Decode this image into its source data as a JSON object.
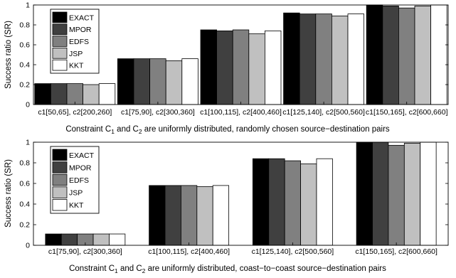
{
  "chart_data": [
    {
      "type": "bar",
      "title": "",
      "ylabel": "Success ratio (SR)",
      "xlabel_parts": [
        "Constraint C",
        "1",
        " and C",
        "2",
        " are uniformly distributed, randomly chosen source−destination pairs"
      ],
      "ylim": [
        0,
        1
      ],
      "yticks": [
        "0",
        "0.2",
        "0.4",
        "0.6",
        "0.8",
        "1"
      ],
      "grid": false,
      "legend_position": "top-left",
      "categories": [
        "c1[50,65], c2[200,260]",
        "c1[75,90], c2[300,360]",
        "c1[100,115], c2[400,460]",
        "c1[125,140], c2[500,560]",
        "c1[150,165], c2[600,660]"
      ],
      "series": [
        {
          "name": "EXACT",
          "color": "#000000",
          "values": [
            0.21,
            0.46,
            0.75,
            0.92,
            1.0
          ]
        },
        {
          "name": "MPOR",
          "color": "#404040",
          "values": [
            0.21,
            0.46,
            0.74,
            0.91,
            0.99
          ]
        },
        {
          "name": "EDFS",
          "color": "#808080",
          "values": [
            0.21,
            0.46,
            0.75,
            0.91,
            0.97
          ]
        },
        {
          "name": "JSP",
          "color": "#c0c0c0",
          "values": [
            0.2,
            0.44,
            0.71,
            0.89,
            0.99
          ]
        },
        {
          "name": "KKT",
          "color": "#ffffff",
          "values": [
            0.21,
            0.46,
            0.74,
            0.91,
            1.0
          ]
        }
      ]
    },
    {
      "type": "bar",
      "title": "",
      "ylabel": "Success ratio (SR)",
      "xlabel_parts": [
        "Constraint C",
        "1",
        " and C",
        "2",
        " are uniformly distributed, coast−to−coast source−destination pairs"
      ],
      "ylim": [
        0,
        1
      ],
      "yticks": [
        "0",
        "0.2",
        "0.4",
        "0.6",
        "0.8",
        "1"
      ],
      "grid": false,
      "legend_position": "top-left",
      "categories": [
        "c1[75,90], c2[300,360]",
        "c1[100,115], c2[400,460]",
        "c1[125,140], c2[500,560]",
        "c1[150,165], c2[600,660]"
      ],
      "series": [
        {
          "name": "EXACT",
          "color": "#000000",
          "values": [
            0.11,
            0.58,
            0.84,
            1.0
          ]
        },
        {
          "name": "MPOR",
          "color": "#404040",
          "values": [
            0.11,
            0.58,
            0.84,
            1.0
          ]
        },
        {
          "name": "EDFS",
          "color": "#808080",
          "values": [
            0.11,
            0.58,
            0.82,
            0.97
          ]
        },
        {
          "name": "JSP",
          "color": "#c0c0c0",
          "values": [
            0.11,
            0.57,
            0.79,
            0.99
          ]
        },
        {
          "name": "KKT",
          "color": "#ffffff",
          "values": [
            0.11,
            0.58,
            0.84,
            1.0
          ]
        }
      ]
    }
  ]
}
